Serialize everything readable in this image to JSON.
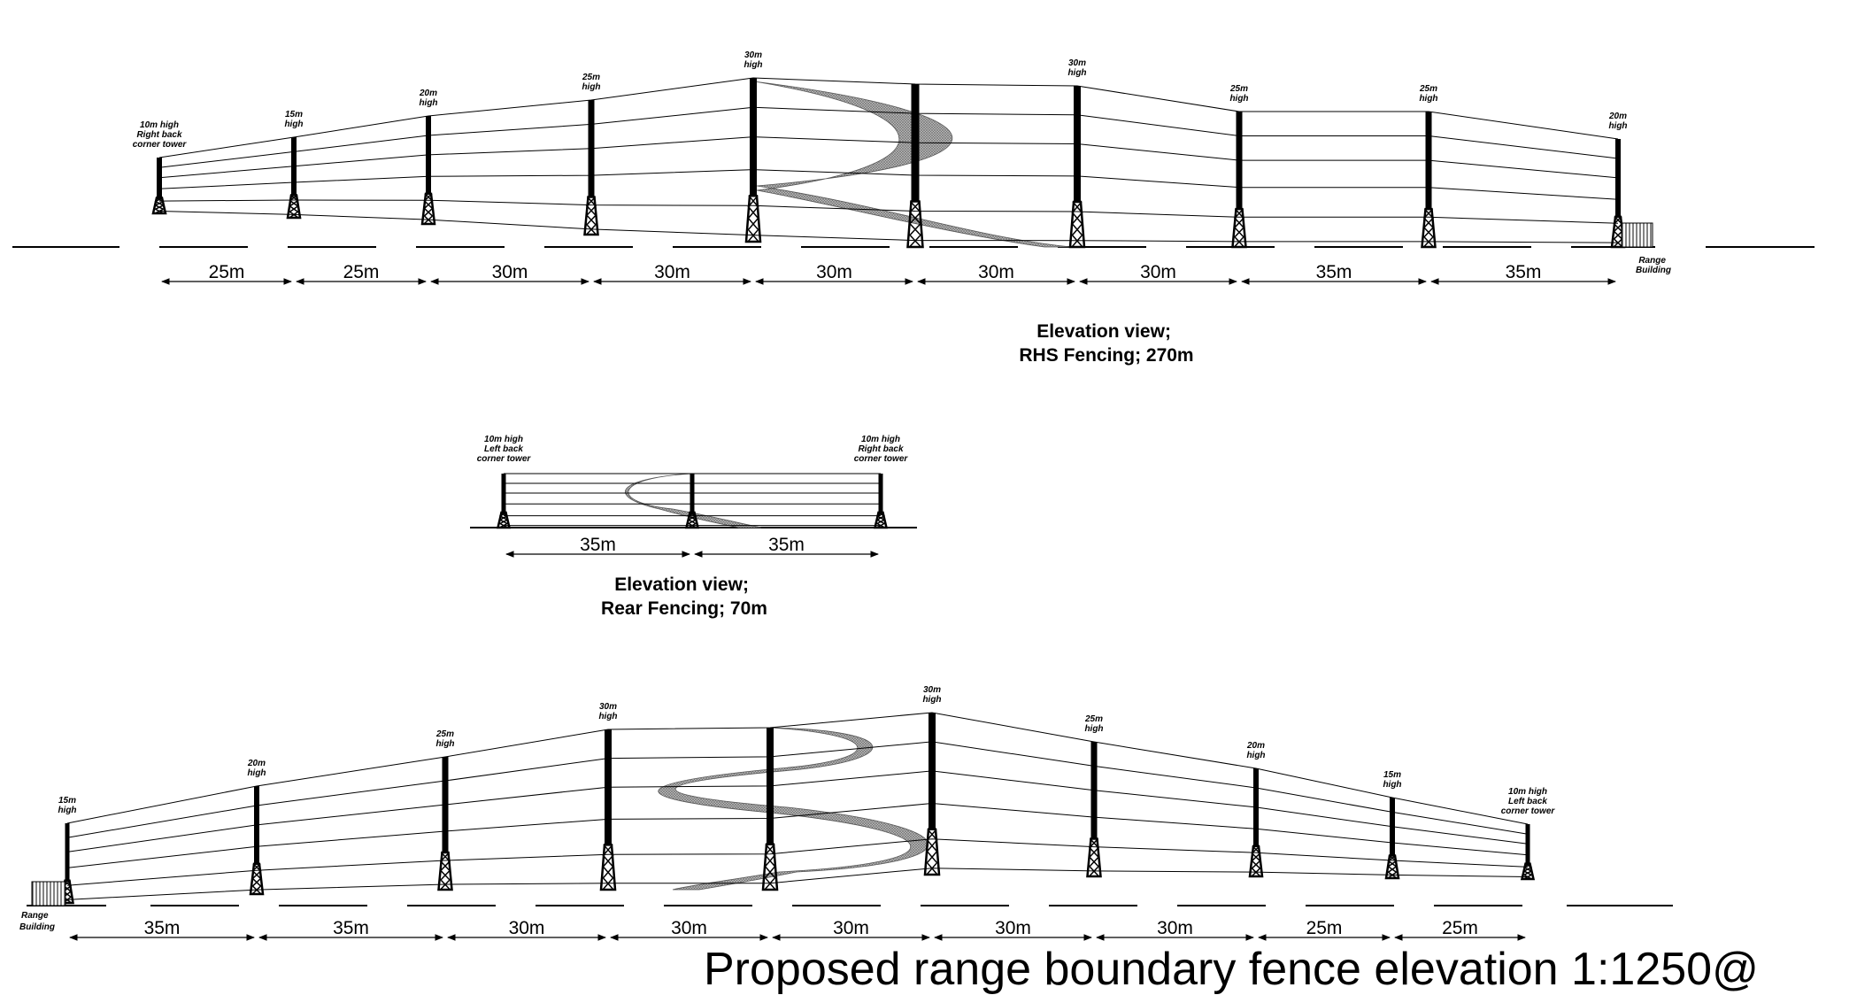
{
  "title": "Proposed range boundary fence elevation 1:1250@",
  "range_building_label": [
    "Range",
    "Building"
  ],
  "elevations": [
    {
      "id": "rhs",
      "caption": [
        "Elevation view;",
        "RHS Fencing; 270m"
      ],
      "towers": [
        {
          "label": [
            "10m  high",
            "Right back",
            "corner tower"
          ],
          "height_m": 10
        },
        {
          "label": [
            "15m",
            "high"
          ],
          "height_m": 15
        },
        {
          "label": [
            "20m",
            "high"
          ],
          "height_m": 20
        },
        {
          "label": [
            "25m",
            "high"
          ],
          "height_m": 25
        },
        {
          "label": [
            "30m",
            "high"
          ],
          "height_m": 30
        },
        {
          "label": [],
          "height_m": 30
        },
        {
          "label": [
            "30m",
            "high"
          ],
          "height_m": 30
        },
        {
          "label": [
            "25m",
            "high"
          ],
          "height_m": 25
        },
        {
          "label": [
            "25m",
            "high"
          ],
          "height_m": 25
        },
        {
          "label": [
            "20m",
            "high"
          ],
          "height_m": 20
        }
      ],
      "spans": [
        "25m",
        "25m",
        "30m",
        "30m",
        "30m",
        "30m",
        "30m",
        "35m",
        "35m"
      ]
    },
    {
      "id": "rear",
      "caption": [
        "Elevation view;",
        "Rear Fencing; 70m"
      ],
      "towers": [
        {
          "label": [
            "10m  high",
            "Left back",
            "corner tower"
          ],
          "height_m": 10
        },
        {
          "label": [],
          "height_m": 10
        },
        {
          "label": [
            "10m  high",
            "Right back",
            "corner tower"
          ],
          "height_m": 10
        }
      ],
      "spans": [
        "35m",
        "35m"
      ]
    },
    {
      "id": "lhs",
      "caption": [],
      "towers": [
        {
          "label": [
            "15m",
            "high"
          ],
          "height_m": 15
        },
        {
          "label": [
            "20m",
            "high"
          ],
          "height_m": 20
        },
        {
          "label": [
            "25m",
            "high"
          ],
          "height_m": 25
        },
        {
          "label": [
            "30m",
            "high"
          ],
          "height_m": 30
        },
        {
          "label": [],
          "height_m": 30
        },
        {
          "label": [
            "30m",
            "high"
          ],
          "height_m": 30
        },
        {
          "label": [
            "25m",
            "high"
          ],
          "height_m": 25
        },
        {
          "label": [
            "20m",
            "high"
          ],
          "height_m": 20
        },
        {
          "label": [
            "15m",
            "high"
          ],
          "height_m": 15
        },
        {
          "label": [
            "10m  high",
            "Left back",
            "corner tower"
          ],
          "height_m": 10
        }
      ],
      "spans": [
        "35m",
        "35m",
        "30m",
        "30m",
        "30m",
        "30m",
        "30m",
        "25m",
        "25m"
      ]
    }
  ]
}
